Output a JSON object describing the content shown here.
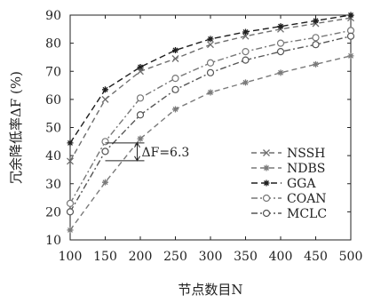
{
  "chart_data": {
    "type": "line",
    "xlabel": "节点数目N",
    "ylabel": "冗余降低率ΔF (%)",
    "x": [
      100,
      150,
      200,
      250,
      300,
      350,
      400,
      450,
      500
    ],
    "xlim": [
      100,
      500
    ],
    "ylim": [
      10,
      90
    ],
    "xticks": [
      "100",
      "150",
      "200",
      "250",
      "300",
      "350",
      "400",
      "450",
      "500"
    ],
    "yticks": [
      "10",
      "20",
      "30",
      "40",
      "50",
      "60",
      "70",
      "80",
      "90"
    ],
    "grid": false,
    "legend_position": "bottom-right",
    "series": [
      {
        "name": "NSSH",
        "marker": "x",
        "color": "#6e6e6e",
        "dash": "6,4",
        "values": [
          38,
          60,
          70,
          74.5,
          79.5,
          82.5,
          85,
          87,
          89
        ]
      },
      {
        "name": "NDBS",
        "marker": "star",
        "color": "#7a7a7a",
        "dash": "6,4",
        "values": [
          13.5,
          30.5,
          46,
          56.5,
          62.5,
          66,
          69.5,
          72.5,
          75.5
        ]
      },
      {
        "name": "GGA",
        "marker": "star",
        "color": "#1e1e1e",
        "dash": "7,4",
        "values": [
          44.5,
          63.5,
          71.5,
          77.5,
          81.5,
          84,
          86,
          88,
          90
        ]
      },
      {
        "name": "COAN",
        "marker": "circle",
        "color": "#777777",
        "dash": "7,3,2,3",
        "values": [
          23,
          45,
          60.5,
          67.5,
          73,
          77,
          80,
          82,
          84.5
        ]
      },
      {
        "name": "MCLC",
        "marker": "circle",
        "color": "#555555",
        "dash": "7,3,2,3",
        "values": [
          20,
          41.5,
          54.5,
          63.5,
          69.5,
          74,
          77,
          79.5,
          82.5
        ]
      }
    ],
    "annotation": {
      "text": "ΔF=6.3",
      "x": 150,
      "y_top": 44.5,
      "y_bottom": 38.2
    }
  }
}
